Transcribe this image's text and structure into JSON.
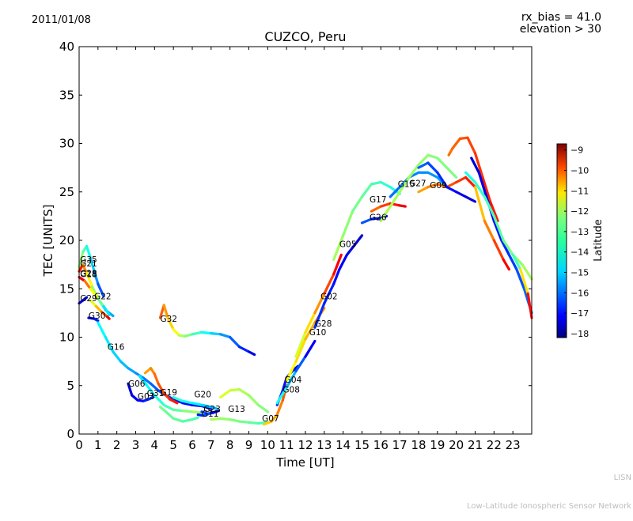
{
  "header": {
    "date": "2011/01/08",
    "rx_bias": "rx_bias = 41.0",
    "elevation": "elevation > 30",
    "title": "CUZCO, Peru"
  },
  "footer": {
    "line1": "LISN",
    "line2": "Low-Latitude Ionospheric Sensor Network"
  },
  "colorbar": {
    "label": "Latitude",
    "ticks": [
      -9,
      -10,
      -11,
      -12,
      -13,
      -14,
      -15,
      -16,
      -17,
      -18
    ],
    "range": [
      -18.2,
      -8.7
    ]
  },
  "chart_data": {
    "type": "line",
    "title": "CUZCO, Peru",
    "xlabel": "Time [UT]",
    "ylabel": "TEC [UNITS]",
    "xlim": [
      0,
      24
    ],
    "ylim": [
      0,
      40
    ],
    "xticks": [
      0,
      1,
      2,
      3,
      4,
      5,
      6,
      7,
      8,
      9,
      10,
      11,
      12,
      13,
      14,
      15,
      16,
      17,
      18,
      19,
      20,
      21,
      22,
      23
    ],
    "yticks": [
      0,
      5,
      10,
      15,
      20,
      25,
      30,
      35,
      40
    ],
    "grid": false,
    "color_by": "Latitude",
    "series": [
      {
        "name": "G35",
        "lat_start": -13.0,
        "lat_end": -16.5,
        "x": [
          0,
          0.2,
          0.4,
          0.6,
          0.8,
          1.0,
          1.3
        ],
        "y": [
          17.2,
          18.8,
          19.4,
          18.2,
          16.8,
          15.5,
          14.2
        ]
      },
      {
        "name": "G21",
        "lat_start": -9.5,
        "lat_end": -16.0,
        "x": [
          0,
          0.2,
          0.4,
          0.7,
          1.0,
          1.4,
          1.8
        ],
        "y": [
          16.8,
          17.5,
          16.6,
          15.2,
          14.0,
          12.8,
          12.2
        ]
      },
      {
        "name": "G28",
        "lat_start": -9.0,
        "lat_end": -15.5,
        "x": [
          0,
          0.3,
          0.6,
          1.0,
          1.3,
          1.6
        ],
        "y": [
          16.2,
          15.8,
          15.0,
          14.0,
          13.2,
          12.3
        ]
      },
      {
        "name": "G29",
        "lat_start": -17.5,
        "lat_end": -17.0,
        "x": [
          0,
          0.2,
          0.4
        ],
        "y": [
          13.5,
          13.8,
          14.1
        ]
      },
      {
        "name": "G22",
        "lat_start": -13.0,
        "lat_end": -9.2,
        "x": [
          0.6,
          0.9,
          1.2,
          1.5,
          1.6
        ],
        "y": [
          13.8,
          13.2,
          12.6,
          12.1,
          11.9
        ]
      },
      {
        "name": "G30",
        "lat_start": -17.5,
        "lat_end": -16.5,
        "x": [
          0.5,
          0.8,
          1.0
        ],
        "y": [
          12.0,
          11.9,
          11.7
        ]
      },
      {
        "name": "G16",
        "lat_start": -14.5,
        "lat_end": -17.5,
        "x": [
          1.0,
          1.4,
          1.8,
          2.2,
          2.6,
          3.0,
          3.4,
          3.8,
          4.2,
          4.6,
          5.0,
          5.5,
          6.0,
          6.5,
          7.0
        ],
        "y": [
          11.5,
          10.0,
          8.5,
          7.5,
          6.8,
          6.3,
          5.8,
          5.2,
          4.5,
          4.0,
          3.6,
          3.2,
          3.0,
          2.9,
          2.6
        ]
      },
      {
        "name": "G32",
        "lat_start": -10.5,
        "lat_end": -17.5,
        "x": [
          4.3,
          4.5,
          4.7,
          5.0,
          5.3,
          5.6,
          6.0,
          6.5,
          7.0,
          7.5,
          8.0,
          8.5,
          9.0,
          9.3
        ],
        "y": [
          12.0,
          13.3,
          12.0,
          10.8,
          10.2,
          10.1,
          10.3,
          10.5,
          10.4,
          10.3,
          10.0,
          9.0,
          8.5,
          8.2
        ]
      },
      {
        "name": "G06",
        "lat_start": -17.5,
        "lat_end": -16.5,
        "x": [
          2.6,
          2.8,
          3.1,
          3.4,
          3.7,
          4.0
        ],
        "y": [
          5.2,
          4.0,
          3.5,
          3.4,
          3.6,
          3.9
        ]
      },
      {
        "name": "G03",
        "lat_start": -15.0,
        "lat_end": -13.0,
        "x": [
          3.2,
          3.6,
          4.0,
          4.5,
          5.0,
          5.5,
          6.0,
          6.5
        ],
        "y": [
          6.0,
          5.0,
          4.0,
          3.0,
          2.5,
          2.4,
          2.3,
          2.2
        ]
      },
      {
        "name": "G31",
        "lat_start": -11.5,
        "lat_end": -10.0,
        "x": [
          3.5,
          3.8,
          4.0,
          4.2,
          4.5,
          4.8,
          5.2
        ],
        "y": [
          6.3,
          6.8,
          6.2,
          5.2,
          4.2,
          3.6,
          3.2
        ]
      },
      {
        "name": "G19",
        "lat_start": -13.5,
        "lat_end": -14.0,
        "x": [
          4.3,
          4.6,
          5.0,
          5.5,
          6.0,
          6.3
        ],
        "y": [
          2.8,
          2.3,
          1.6,
          1.3,
          1.5,
          1.7
        ]
      },
      {
        "name": "G20",
        "lat_start": -14.0,
        "lat_end": -15.5,
        "x": [
          5.0,
          5.5,
          6.0,
          6.5,
          7.0,
          7.3
        ],
        "y": [
          3.8,
          3.4,
          3.2,
          3.0,
          2.8,
          2.6
        ]
      },
      {
        "name": "G23",
        "lat_start": -16.0,
        "lat_end": -17.5,
        "x": [
          6.5,
          6.8,
          7.1,
          7.4
        ],
        "y": [
          2.3,
          2.1,
          2.2,
          2.4
        ]
      },
      {
        "name": "G11",
        "lat_start": -17.0,
        "lat_end": -16.0,
        "x": [
          6.3,
          6.6,
          6.9
        ],
        "y": [
          2.0,
          1.9,
          2.1
        ]
      },
      {
        "name": "G13",
        "lat_start": -12.5,
        "lat_end": -13.5,
        "x": [
          7.5,
          8.0,
          8.5,
          9.0,
          9.5,
          10.0
        ],
        "y": [
          3.8,
          4.5,
          4.6,
          4.0,
          3.0,
          2.3
        ]
      },
      {
        "name": "G07",
        "lat_start": -13.0,
        "lat_end": -14.0,
        "x": [
          7.0,
          7.5,
          8.0,
          8.5,
          9.0,
          9.5,
          10.0
        ],
        "y": [
          1.5,
          1.6,
          1.5,
          1.3,
          1.2,
          1.1,
          1.2
        ]
      },
      {
        "name": "G08",
        "lat_start": -12.0,
        "lat_end": -10.5,
        "x": [
          9.8,
          10.2,
          10.5,
          10.8,
          11.0
        ],
        "y": [
          1.0,
          1.3,
          2.0,
          3.5,
          5.0
        ]
      },
      {
        "name": "G04",
        "lat_start": -16.5,
        "lat_end": -17.5,
        "x": [
          10.5,
          10.8,
          11.0,
          11.3,
          11.6
        ],
        "y": [
          3.0,
          4.5,
          5.8,
          6.5,
          7.0
        ]
      },
      {
        "name": "G10",
        "lat_start": -14.0,
        "lat_end": -17.5,
        "x": [
          10.5,
          11.0,
          11.5,
          12.0,
          12.5
        ],
        "y": [
          3.2,
          4.8,
          6.5,
          8.0,
          9.6
        ]
      },
      {
        "name": "G28",
        "lat_start": -12.5,
        "lat_end": -11.0,
        "x": [
          11.0,
          11.5,
          12.0,
          12.5,
          13.0
        ],
        "y": [
          5.5,
          7.5,
          9.8,
          11.5,
          13.0
        ]
      },
      {
        "name": "G02",
        "lat_start": -13.0,
        "lat_end": -9.5,
        "x": [
          11.5,
          12.0,
          12.5,
          13.0,
          13.5,
          13.9
        ],
        "y": [
          8.0,
          10.5,
          12.5,
          14.5,
          16.5,
          18.5
        ]
      },
      {
        "name": "G05",
        "lat_start": -16.5,
        "lat_end": -17.5,
        "x": [
          12.5,
          13.0,
          13.5,
          13.8,
          14.2,
          14.6,
          15.0
        ],
        "y": [
          11.0,
          13.5,
          15.5,
          17.0,
          18.5,
          19.5,
          20.5
        ]
      },
      {
        "name": "G17",
        "lat_start": -13.0,
        "lat_end": -14.5,
        "x": [
          13.5,
          14.0,
          14.5,
          15.0,
          15.5,
          16.0,
          16.5,
          17.0
        ],
        "y": [
          18.0,
          20.5,
          23.0,
          24.5,
          25.8,
          26.0,
          25.5,
          24.8
        ]
      },
      {
        "name": "G26",
        "lat_start": -11.0,
        "lat_end": -9.5,
        "x": [
          15.5,
          16.0,
          16.5,
          17.0,
          17.3
        ],
        "y": [
          23.0,
          23.5,
          23.8,
          23.6,
          23.5
        ]
      },
      {
        "name": "G26",
        "lat_start": -16.0,
        "lat_end": -17.5,
        "x": [
          15.0,
          15.5,
          16.0,
          16.3
        ],
        "y": [
          21.8,
          22.2,
          22.3,
          22.5
        ]
      },
      {
        "name": "G15",
        "lat_start": -16.0,
        "lat_end": -15.5,
        "x": [
          16.5,
          17.0,
          17.5,
          18.0,
          18.5,
          19.0,
          19.5
        ],
        "y": [
          24.5,
          25.5,
          26.5,
          27.0,
          27.0,
          26.5,
          25.5
        ]
      },
      {
        "name": "G27",
        "lat_start": -13.0,
        "lat_end": -13.5,
        "x": [
          16.0,
          16.5,
          17.0,
          17.5,
          18.0,
          18.5,
          19.0,
          19.5,
          20.0
        ],
        "y": [
          22.0,
          23.5,
          25.0,
          26.5,
          27.8,
          28.8,
          28.5,
          27.5,
          26.5
        ]
      },
      {
        "name": "G09",
        "lat_start": -11.5,
        "lat_end": -10.0,
        "x": [
          18.0,
          18.5,
          19.0,
          19.5,
          20.0,
          20.5,
          21.0
        ],
        "y": [
          25.0,
          25.5,
          25.8,
          25.5,
          26.0,
          26.5,
          25.5
        ]
      },
      {
        "name": "",
        "lat_start": -11.0,
        "lat_end": -10.0,
        "x": [
          19.6,
          19.8,
          20.2,
          20.6,
          21.0,
          21.4,
          21.8,
          22.2
        ],
        "y": [
          28.8,
          29.5,
          30.5,
          30.6,
          29.0,
          26.5,
          24.0,
          22.0
        ]
      },
      {
        "name": "",
        "lat_start": -16.0,
        "lat_end": -17.5,
        "x": [
          18.0,
          18.5,
          19.0,
          19.5,
          20.0,
          20.5,
          21.0
        ],
        "y": [
          27.5,
          28.0,
          27.0,
          25.5,
          25.0,
          24.5,
          24.0
        ]
      },
      {
        "name": "",
        "lat_start": -17.5,
        "lat_end": -16.0,
        "x": [
          20.8,
          21.2,
          21.6,
          22.0,
          22.4,
          22.8,
          23.2,
          23.6,
          24.0
        ],
        "y": [
          28.5,
          27.0,
          24.5,
          22.0,
          20.0,
          18.5,
          17.0,
          15.0,
          12.5
        ]
      },
      {
        "name": "",
        "lat_start": -14.5,
        "lat_end": -13.0,
        "x": [
          20.5,
          21.0,
          21.5,
          22.0,
          22.5,
          23.0,
          23.5,
          24.0
        ],
        "y": [
          27.0,
          26.0,
          24.5,
          22.5,
          20.0,
          18.5,
          17.5,
          16.0
        ]
      },
      {
        "name": "",
        "lat_start": -12.0,
        "lat_end": -9.5,
        "x": [
          21.0,
          21.5,
          22.0,
          22.5,
          22.8
        ],
        "y": [
          25.5,
          22.0,
          20.0,
          18.0,
          17.0
        ]
      },
      {
        "name": "",
        "lat_start": -15.0,
        "lat_end": -9.0,
        "x": [
          23.0,
          23.4,
          23.8,
          24.0
        ],
        "y": [
          18.5,
          17.0,
          14.5,
          12.0
        ]
      }
    ],
    "labels": [
      {
        "text": "G35",
        "x": 0.05,
        "y": 17.7
      },
      {
        "text": "G21",
        "x": 0.05,
        "y": 17.3
      },
      {
        "text": "G28",
        "x": 0.05,
        "y": 16.3
      },
      {
        "text": "G18",
        "x": 0.05,
        "y": 16.2
      },
      {
        "text": "G29",
        "x": 0.05,
        "y": 13.7
      },
      {
        "text": "G22",
        "x": 0.8,
        "y": 13.9
      },
      {
        "text": "G30",
        "x": 0.5,
        "y": 11.9
      },
      {
        "text": "G16",
        "x": 1.5,
        "y": 8.7
      },
      {
        "text": "G32",
        "x": 4.3,
        "y": 11.6
      },
      {
        "text": "G06",
        "x": 2.6,
        "y": 4.9
      },
      {
        "text": "G03",
        "x": 3.1,
        "y": 3.6
      },
      {
        "text": "G31",
        "x": 3.6,
        "y": 3.9
      },
      {
        "text": "G19",
        "x": 4.3,
        "y": 4.0
      },
      {
        "text": "G20",
        "x": 6.1,
        "y": 3.8
      },
      {
        "text": "G23",
        "x": 6.6,
        "y": 2.3
      },
      {
        "text": "G11",
        "x": 6.5,
        "y": 1.8
      },
      {
        "text": "G13",
        "x": 7.9,
        "y": 2.3
      },
      {
        "text": "G07",
        "x": 9.7,
        "y": 1.3
      },
      {
        "text": "G04",
        "x": 10.9,
        "y": 5.3
      },
      {
        "text": "G08",
        "x": 10.8,
        "y": 4.3
      },
      {
        "text": "G02",
        "x": 12.8,
        "y": 13.9
      },
      {
        "text": "G28",
        "x": 12.5,
        "y": 11.1
      },
      {
        "text": "G10",
        "x": 12.2,
        "y": 10.2
      },
      {
        "text": "G05",
        "x": 13.8,
        "y": 19.3
      },
      {
        "text": "G17",
        "x": 15.4,
        "y": 23.9
      },
      {
        "text": "G26",
        "x": 15.4,
        "y": 22.1
      },
      {
        "text": "G15",
        "x": 16.9,
        "y": 25.5
      },
      {
        "text": "G27",
        "x": 17.5,
        "y": 25.6
      },
      {
        "text": "G09",
        "x": 18.6,
        "y": 25.4
      }
    ]
  }
}
